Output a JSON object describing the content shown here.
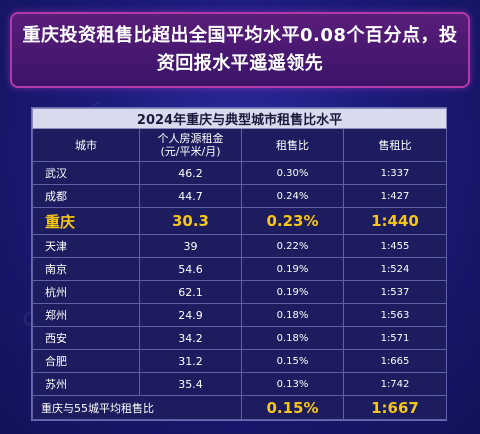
{
  "headline": "重庆投资租售比超出全国平均水平0.08个百分点，投资回报水平遥遥领先",
  "watermark": "CRIC",
  "colors": {
    "background": "#1b1b78",
    "headline_border": "#b33aa6",
    "highlight": "#f5c518"
  },
  "table": {
    "title": "2024年重庆与典型城市租售比水平",
    "headers": {
      "city": "城市",
      "rent": "个人房源租金（元/平米/月）",
      "rent_line1": "个人房源租金",
      "rent_line2": "(元/平米/月)",
      "ratio": "租售比",
      "sale_rent": "售租比"
    },
    "rows": [
      {
        "city": "武汉",
        "rent": "46.2",
        "ratio": "0.30%",
        "sale_rent": "1:337"
      },
      {
        "city": "成都",
        "rent": "44.7",
        "ratio": "0.24%",
        "sale_rent": "1:427"
      },
      {
        "city": "重庆",
        "rent": "30.3",
        "ratio": "0.23%",
        "sale_rent": "1:440"
      },
      {
        "city": "天津",
        "rent": "39",
        "ratio": "0.22%",
        "sale_rent": "1:455"
      },
      {
        "city": "南京",
        "rent": "54.6",
        "ratio": "0.19%",
        "sale_rent": "1:524"
      },
      {
        "city": "杭州",
        "rent": "62.1",
        "ratio": "0.19%",
        "sale_rent": "1:537"
      },
      {
        "city": "郑州",
        "rent": "24.9",
        "ratio": "0.18%",
        "sale_rent": "1:563"
      },
      {
        "city": "西安",
        "rent": "34.2",
        "ratio": "0.18%",
        "sale_rent": "1:571"
      },
      {
        "city": "合肥",
        "rent": "31.2",
        "ratio": "0.15%",
        "sale_rent": "1:665"
      },
      {
        "city": "苏州",
        "rent": "35.4",
        "ratio": "0.13%",
        "sale_rent": "1:742"
      }
    ],
    "footer": {
      "label": "重庆与55城平均租售比",
      "ratio": "0.15%",
      "sale_rent": "1:667"
    }
  }
}
